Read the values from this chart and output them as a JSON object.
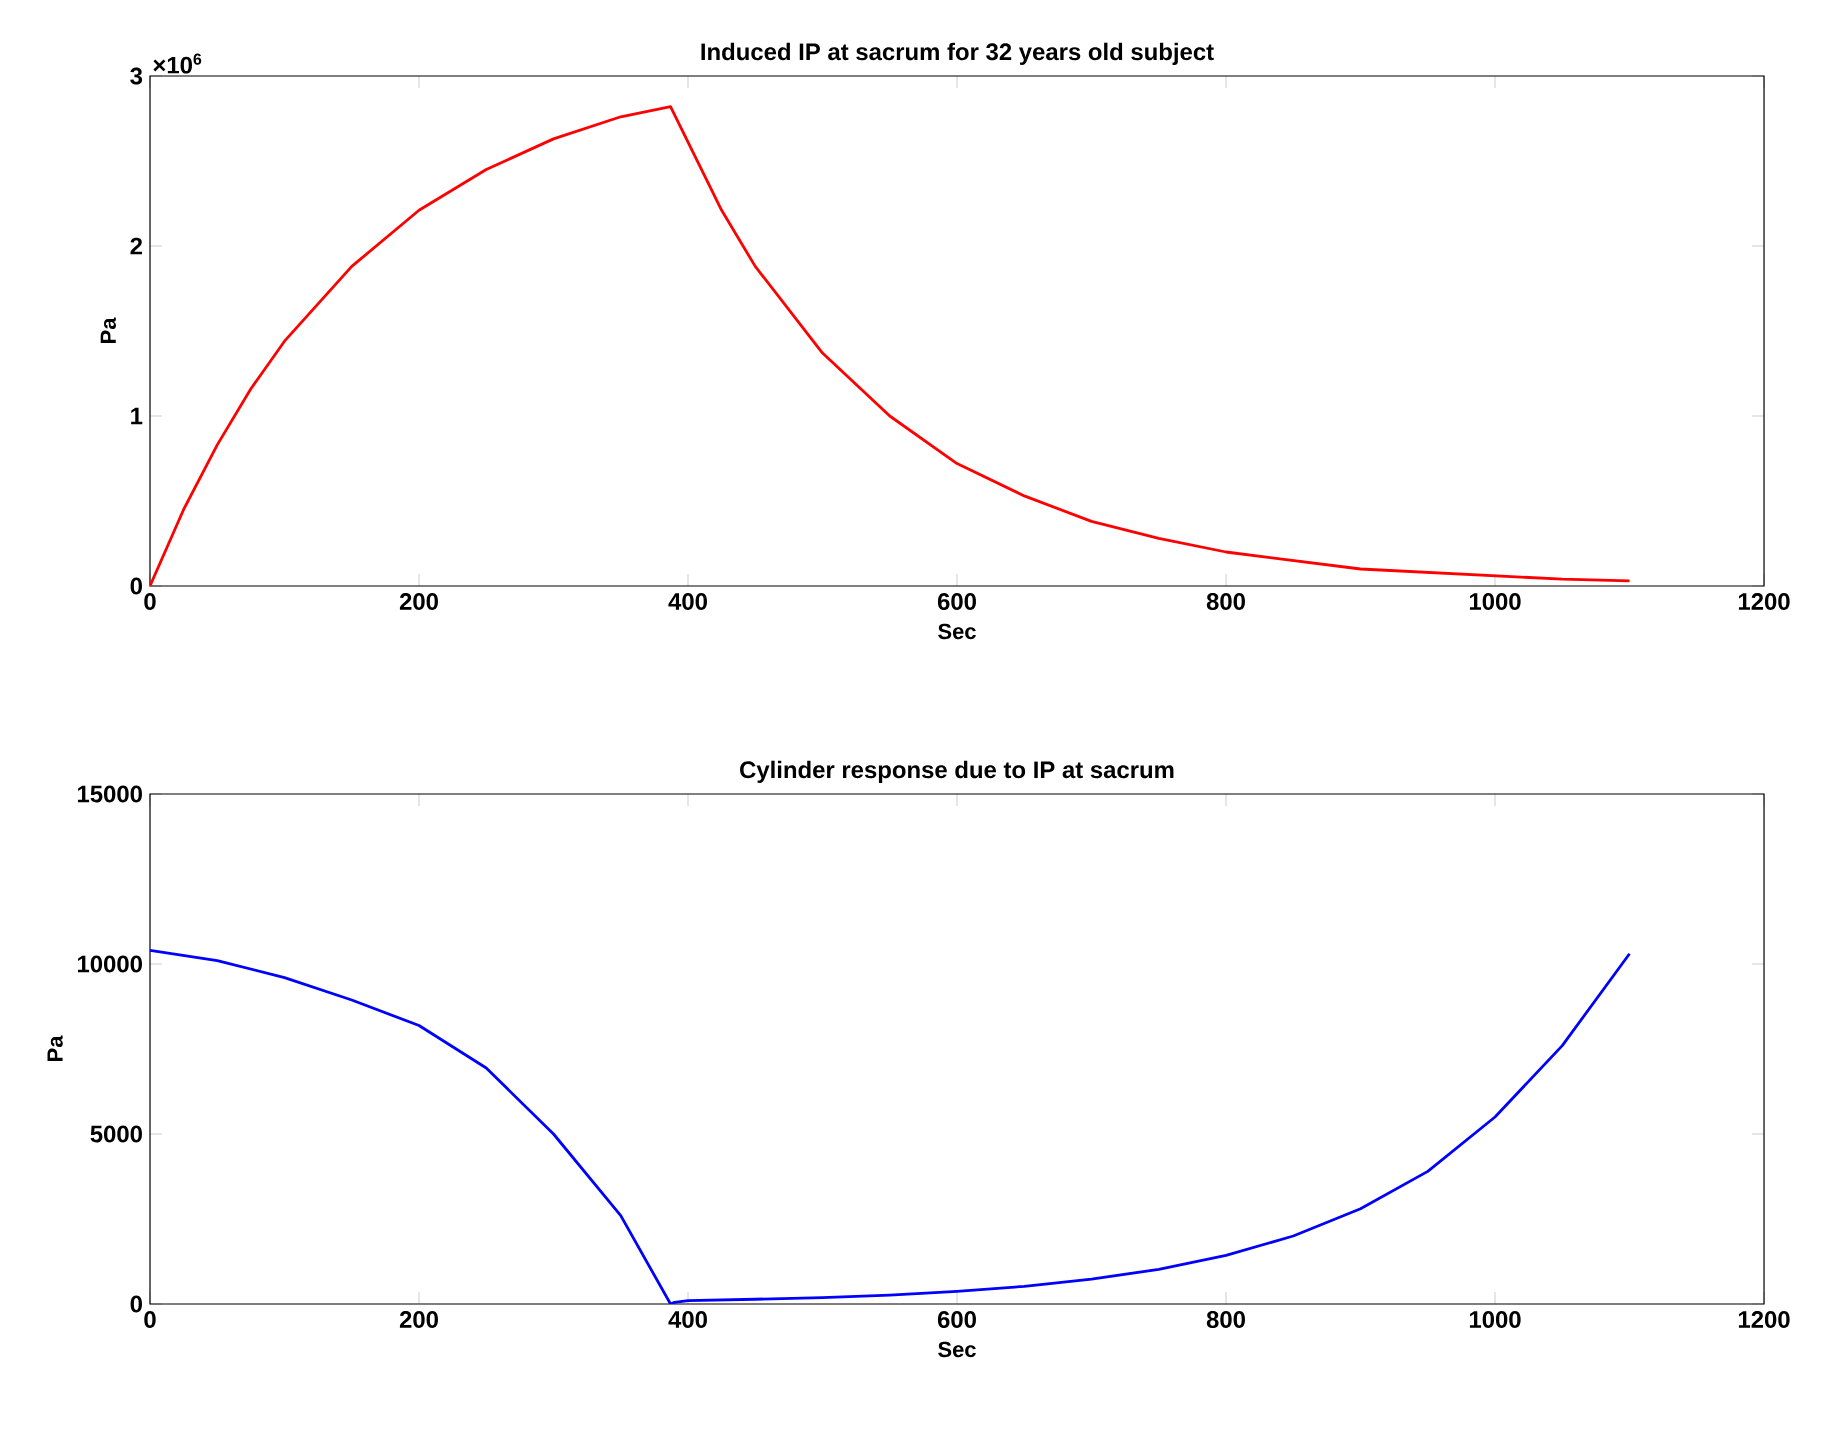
{
  "chart_data": [
    {
      "type": "line",
      "title": "Induced IP at sacrum for 32 years old subject",
      "xlabel": "Sec",
      "ylabel": "Pa",
      "xlim": [
        0,
        1200
      ],
      "xticks": [
        0,
        200,
        400,
        600,
        800,
        1000,
        1200
      ],
      "ylim": [
        0,
        3
      ],
      "yticks": [
        0,
        1,
        2,
        3
      ],
      "annotations": [
        "×10$^{6}$"
      ],
      "series": [
        {
          "color": "#ff0000",
          "x": [
            0,
            25,
            50,
            75,
            100,
            150,
            200,
            250,
            300,
            350,
            387,
            425,
            450,
            500,
            550,
            600,
            650,
            700,
            750,
            800,
            850,
            900,
            950,
            1000,
            1050,
            1100
          ],
          "values": [
            0,
            0.45,
            0.83,
            1.16,
            1.44,
            1.88,
            2.21,
            2.45,
            2.63,
            2.76,
            2.82,
            2.21,
            1.88,
            1.37,
            1.0,
            0.72,
            0.53,
            0.38,
            0.28,
            0.2,
            0.15,
            0.1,
            0.08,
            0.06,
            0.04,
            0.03
          ]
        }
      ]
    },
    {
      "type": "line",
      "title": "Cylinder response due to IP at sacrum",
      "xlabel": "Sec",
      "ylabel": "Pa",
      "xlim": [
        0,
        1200
      ],
      "xticks": [
        0,
        200,
        400,
        600,
        800,
        1000,
        1200
      ],
      "ylim": [
        0,
        15000
      ],
      "yticks": [
        0,
        5000,
        10000,
        15000
      ],
      "series": [
        {
          "color": "#0000ff",
          "x": [
            0,
            50,
            100,
            150,
            200,
            250,
            300,
            350,
            387,
            390,
            400,
            450,
            500,
            550,
            600,
            650,
            700,
            750,
            800,
            850,
            900,
            950,
            1000,
            1050,
            1100
          ],
          "values": [
            10400,
            10100,
            9600,
            8940,
            8190,
            6940,
            5000,
            2600,
            0,
            50,
            100,
            140,
            190,
            260,
            370,
            520,
            730,
            1020,
            1430,
            2000,
            2800,
            3900,
            5500,
            7600,
            10300
          ]
        }
      ]
    }
  ]
}
